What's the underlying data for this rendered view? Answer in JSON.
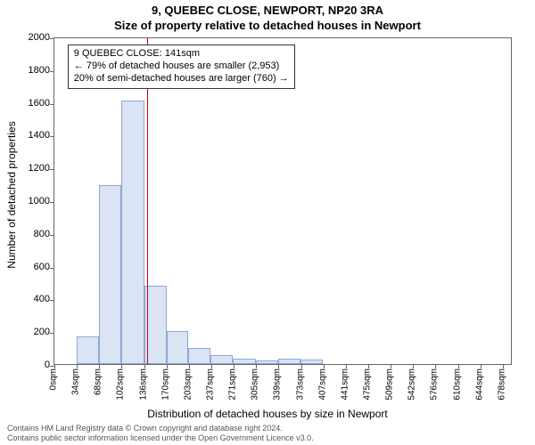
{
  "title_line1": "9, QUEBEC CLOSE, NEWPORT, NP20 3RA",
  "title_line2": "Size of property relative to detached houses in Newport",
  "chart": {
    "type": "histogram",
    "y_axis_label": "Number of detached properties",
    "x_axis_label": "Distribution of detached houses by size in Newport",
    "ylim": [
      0,
      2000
    ],
    "ytick_step": 200,
    "xlim_sqm": [
      0,
      695
    ],
    "xtick_step_sqm": 34,
    "xtick_unit": "sqm",
    "bar_fill": "#dbe4f4",
    "bar_border": "#8da7d6",
    "plot_border": "#666666",
    "marker_line_color": "#cc0000",
    "marker_sqm": 141,
    "bins": [
      {
        "start": 0,
        "end": 34,
        "count": 0
      },
      {
        "start": 34,
        "end": 68,
        "count": 170
      },
      {
        "start": 68,
        "end": 102,
        "count": 1090
      },
      {
        "start": 102,
        "end": 136,
        "count": 1610
      },
      {
        "start": 136,
        "end": 170,
        "count": 480
      },
      {
        "start": 170,
        "end": 203,
        "count": 200
      },
      {
        "start": 203,
        "end": 237,
        "count": 100
      },
      {
        "start": 237,
        "end": 271,
        "count": 55
      },
      {
        "start": 271,
        "end": 305,
        "count": 30
      },
      {
        "start": 305,
        "end": 339,
        "count": 20
      },
      {
        "start": 339,
        "end": 373,
        "count": 30
      },
      {
        "start": 373,
        "end": 407,
        "count": 25
      },
      {
        "start": 407,
        "end": 441,
        "count": 0
      },
      {
        "start": 441,
        "end": 475,
        "count": 0
      },
      {
        "start": 475,
        "end": 509,
        "count": 0
      },
      {
        "start": 509,
        "end": 542,
        "count": 0
      },
      {
        "start": 542,
        "end": 576,
        "count": 0
      },
      {
        "start": 576,
        "end": 610,
        "count": 0
      },
      {
        "start": 610,
        "end": 644,
        "count": 0
      },
      {
        "start": 644,
        "end": 678,
        "count": 0
      }
    ],
    "xticks": [
      "0sqm",
      "34sqm",
      "68sqm",
      "102sqm",
      "136sqm",
      "170sqm",
      "203sqm",
      "237sqm",
      "271sqm",
      "305sqm",
      "339sqm",
      "373sqm",
      "407sqm",
      "441sqm",
      "475sqm",
      "509sqm",
      "542sqm",
      "576sqm",
      "610sqm",
      "644sqm",
      "678sqm"
    ],
    "annotation": {
      "lines": [
        "9 QUEBEC CLOSE: 141sqm",
        "← 79% of detached houses are smaller (2,953)",
        "20% of semi-detached houses are larger (760) →"
      ],
      "left_sqm": 20,
      "top_count": 1960
    }
  },
  "attribution_line1": "Contains HM Land Registry data © Crown copyright and database right 2024.",
  "attribution_line2": "Contains public sector information licensed under the Open Government Licence v3.0."
}
